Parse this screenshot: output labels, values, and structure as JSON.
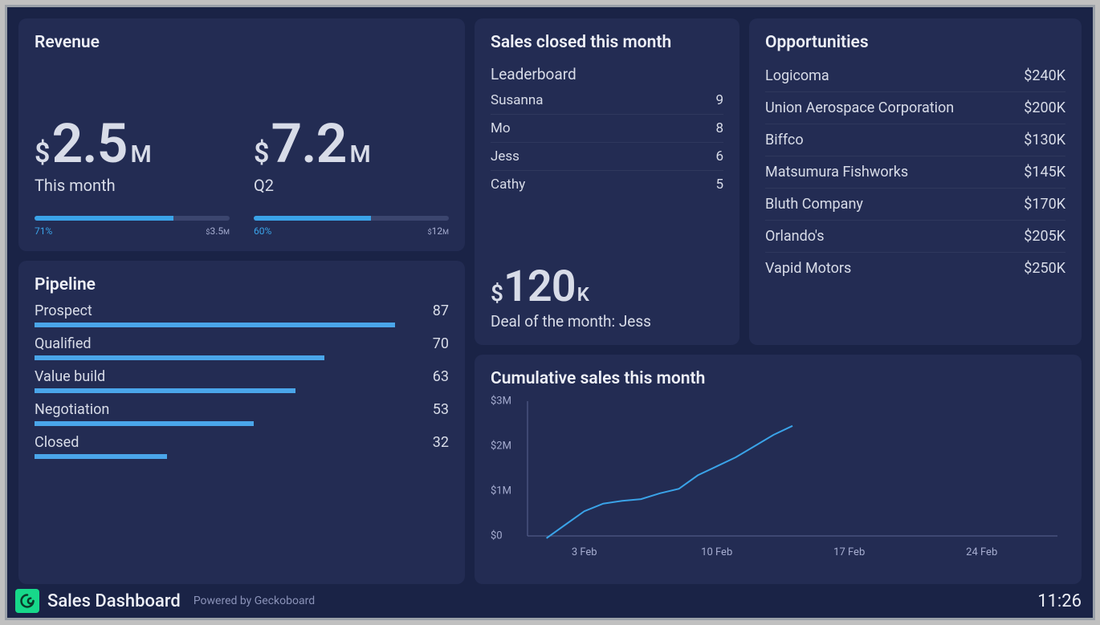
{
  "colors": {
    "page_bg": "#1a2346",
    "panel_bg": "#232c53",
    "text_primary": "#d8dce8",
    "text_muted": "#a6add0",
    "accent_blue": "#3aa3e8",
    "bar_blue": "#4aa6ea",
    "track": "#3b456e",
    "logo_green": "#17d88a",
    "logo_fg": "#0b3a2a"
  },
  "revenue": {
    "title": "Revenue",
    "metrics": [
      {
        "currency": "$",
        "number": "2.5",
        "unit": "M",
        "sublabel": "This month",
        "percent": 71,
        "percent_label": "71%",
        "target_currency": "$",
        "target_value": "3.5",
        "target_unit": "M"
      },
      {
        "currency": "$",
        "number": "7.2",
        "unit": "M",
        "sublabel": "Q2",
        "percent": 60,
        "percent_label": "60%",
        "target_currency": "$",
        "target_value": "12",
        "target_unit": "M"
      }
    ]
  },
  "pipeline": {
    "title": "Pipeline",
    "max": 100,
    "rows": [
      {
        "label": "Prospect",
        "value": 87
      },
      {
        "label": "Qualified",
        "value": 70
      },
      {
        "label": "Value build",
        "value": 63
      },
      {
        "label": "Negotiation",
        "value": 53
      },
      {
        "label": "Closed",
        "value": 32
      }
    ]
  },
  "sales": {
    "title": "Sales closed this month",
    "leaderboard_title": "Leaderboard",
    "leaders": [
      {
        "name": "Susanna",
        "count": 9
      },
      {
        "name": "Mo",
        "count": 8
      },
      {
        "name": "Jess",
        "count": 6
      },
      {
        "name": "Cathy",
        "count": 5
      }
    ],
    "deal_currency": "$",
    "deal_number": "120",
    "deal_unit": "K",
    "deal_sub": "Deal of the month: Jess"
  },
  "opportunities": {
    "title": "Opportunities",
    "rows": [
      {
        "name": "Logicoma",
        "value": "$240K"
      },
      {
        "name": "Union Aerospace Corporation",
        "value": "$200K"
      },
      {
        "name": "Biffco",
        "value": "$130K"
      },
      {
        "name": "Matsumura Fishworks",
        "value": "$145K"
      },
      {
        "name": "Bluth Company",
        "value": "$170K"
      },
      {
        "name": "Orlando's",
        "value": "$205K"
      },
      {
        "name": "Vapid Motors",
        "value": "$250K"
      }
    ]
  },
  "chart": {
    "title": "Cumulative sales this month",
    "type": "line",
    "line_color": "#3aa3e8",
    "line_width": 2,
    "background_color": "#232c53",
    "axis_color": "#5a6390",
    "label_color": "#a6add0",
    "label_fontsize": 13,
    "ylim": [
      0,
      3
    ],
    "y_ticks": [
      {
        "value": 0,
        "label": "$0"
      },
      {
        "value": 1,
        "label": "$1M"
      },
      {
        "value": 2,
        "label": "$2M"
      },
      {
        "value": 3,
        "label": "$3M"
      }
    ],
    "xlim": [
      0,
      28
    ],
    "x_ticks": [
      {
        "value": 3,
        "label": "3 Feb"
      },
      {
        "value": 10,
        "label": "10 Feb"
      },
      {
        "value": 17,
        "label": "17 Feb"
      },
      {
        "value": 24,
        "label": "24 Feb"
      }
    ],
    "points": [
      {
        "x": 1,
        "y": -0.05
      },
      {
        "x": 2,
        "y": 0.25
      },
      {
        "x": 3,
        "y": 0.55
      },
      {
        "x": 4,
        "y": 0.72
      },
      {
        "x": 5,
        "y": 0.78
      },
      {
        "x": 6,
        "y": 0.82
      },
      {
        "x": 7,
        "y": 0.95
      },
      {
        "x": 8,
        "y": 1.05
      },
      {
        "x": 9,
        "y": 1.35
      },
      {
        "x": 10,
        "y": 1.55
      },
      {
        "x": 11,
        "y": 1.75
      },
      {
        "x": 12,
        "y": 2.0
      },
      {
        "x": 13,
        "y": 2.25
      },
      {
        "x": 14,
        "y": 2.45
      }
    ]
  },
  "footer": {
    "title": "Sales Dashboard",
    "powered": "Powered by Geckoboard",
    "time": "11:26"
  }
}
